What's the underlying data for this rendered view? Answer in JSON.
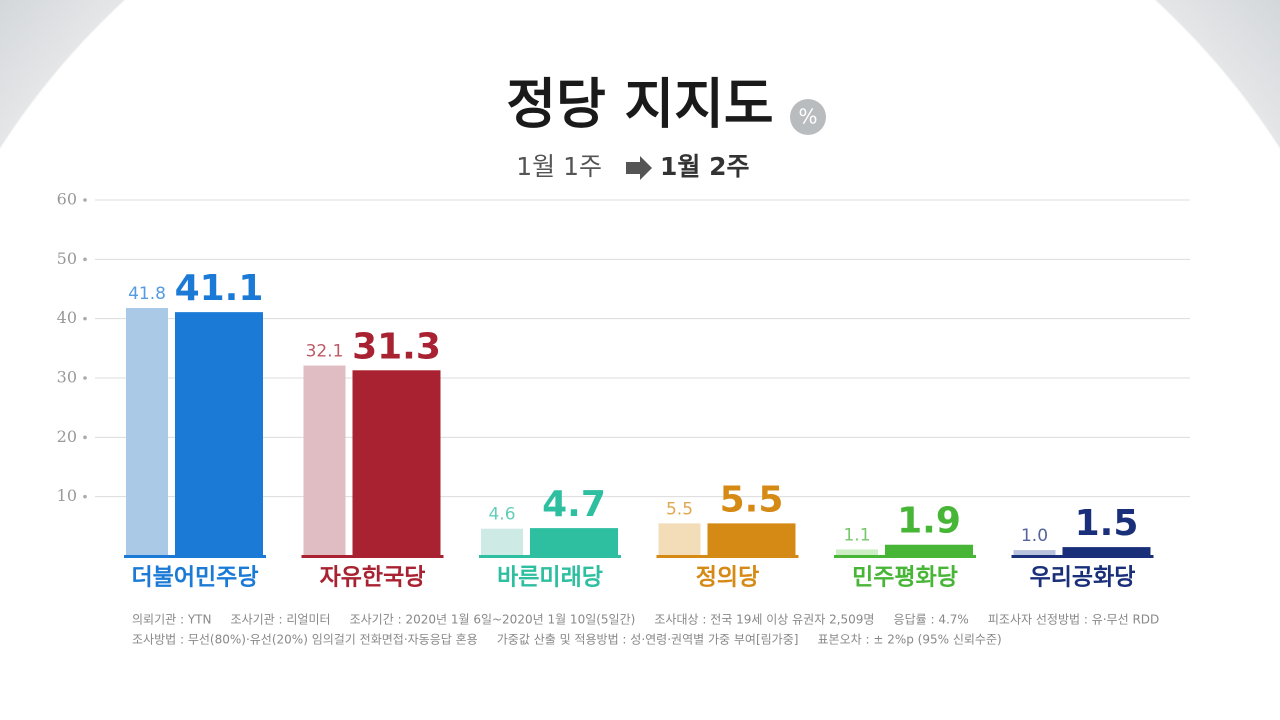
{
  "chart_data": {
    "type": "bar",
    "title": "정당 지지도",
    "unit": "%",
    "categories": [
      "더불어민주당",
      "자유한국당",
      "바른미래당",
      "정의당",
      "민주평화당",
      "우리공화당"
    ],
    "series": [
      {
        "name": "1월 1주",
        "colors": [
          "#a9c9e6",
          "#dfbdc3",
          "#cdeae4",
          "#f3ddb8",
          "#cdeec5",
          "#b9c3de"
        ],
        "values": [
          41.8,
          32.1,
          4.6,
          5.5,
          1.1,
          1.0
        ],
        "value_labels": [
          "41.8",
          "32.1",
          "4.6",
          "5.5",
          "1.1",
          "1.0"
        ]
      },
      {
        "name": "1월 2주",
        "colors": [
          "#1b7ad6",
          "#a92232",
          "#2ebea0",
          "#d68a16",
          "#47b536",
          "#1a2f7a"
        ],
        "values": [
          41.1,
          31.3,
          4.7,
          5.5,
          1.9,
          1.5
        ],
        "value_labels": [
          "41.1",
          "31.3",
          "4.7",
          "5.5",
          "1.9",
          "1.5"
        ]
      }
    ],
    "ylim": [
      0,
      60
    ],
    "yticks": [
      10,
      20,
      30,
      40,
      50,
      60
    ],
    "grid": true,
    "notes": [
      "의뢰기관 : YTN     조사기관 : 리얼미터     조사기간 : 2020년 1월 6일~2020년 1월 10일(5일간)     조사대상 : 전국 19세 이상 유권자 2,509명     응답률 : 4.7%     피조사자 선정방법 : 유·무선 RDD",
      "조사방법 : 무선(80%)·유선(20%) 임의걸기 전화면접·자동응답 혼용     가중값 산출 및 적용방법 : 성·연령·권역별 가중 부여[림가중]     표본오차 : ± 2%p (95% 신뢰수준)"
    ]
  }
}
